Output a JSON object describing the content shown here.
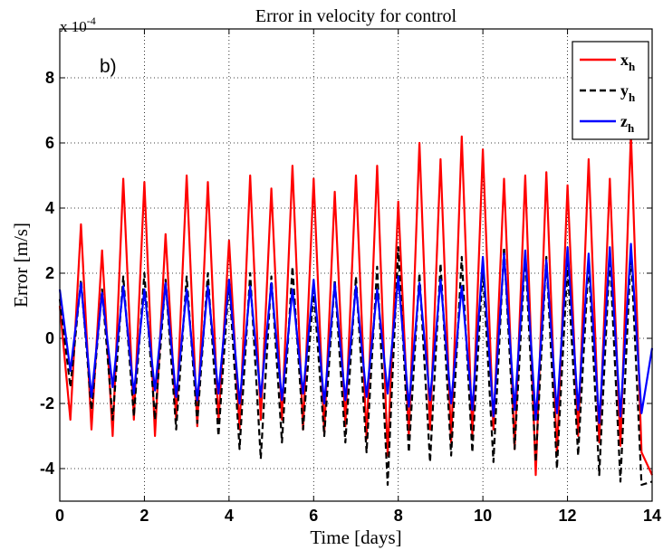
{
  "chart_data": {
    "type": "line",
    "title": "Error in velocity for control",
    "xlabel": "Time [days]",
    "ylabel": "Error [m/s]",
    "y_multiplier_label": "x 10",
    "y_multiplier_exponent": "-4",
    "panel_label": "b)",
    "xlim": [
      0,
      14
    ],
    "ylim": [
      -5,
      9.5
    ],
    "xticks": [
      "0",
      "2",
      "4",
      "6",
      "8",
      "10",
      "12",
      "14"
    ],
    "yticks": [
      "-4",
      "-2",
      "0",
      "2",
      "4",
      "6",
      "8"
    ],
    "grid": true,
    "legend_position": "top-right",
    "series": [
      {
        "name": "x_h",
        "label_base": "x",
        "label_sub": "h",
        "color": "#ff0000",
        "dash": "solid",
        "x": [
          0,
          0.25,
          0.5,
          0.75,
          1,
          1.25,
          1.5,
          1.75,
          2,
          2.25,
          2.5,
          2.75,
          3,
          3.25,
          3.5,
          3.75,
          4,
          4.25,
          4.5,
          4.75,
          5,
          5.25,
          5.5,
          5.75,
          6,
          6.25,
          6.5,
          6.75,
          7,
          7.25,
          7.5,
          7.75,
          8,
          8.25,
          8.5,
          8.75,
          9,
          9.25,
          9.5,
          9.75,
          10,
          10.25,
          10.5,
          10.75,
          11,
          11.25,
          11.5,
          11.75,
          12,
          12.25,
          12.5,
          12.75,
          13,
          13.25,
          13.5,
          13.75,
          14
        ],
        "values": [
          1.0,
          -2.5,
          3.5,
          -2.8,
          2.7,
          -3.0,
          4.9,
          -2.5,
          4.8,
          -3.0,
          3.2,
          -2.5,
          5.0,
          -2.7,
          4.8,
          -2.6,
          3.0,
          -2.8,
          5.0,
          -2.5,
          4.6,
          -2.5,
          5.3,
          -2.8,
          4.9,
          -2.9,
          4.5,
          -2.7,
          5.0,
          -3.1,
          5.3,
          -3.6,
          4.2,
          -3.0,
          6.0,
          -2.8,
          5.5,
          -3.2,
          6.2,
          -3.0,
          5.8,
          -2.8,
          4.9,
          -3.4,
          5.0,
          -4.2,
          5.1,
          -3.6,
          4.7,
          -3.0,
          5.5,
          -3.2,
          4.9,
          -3.3,
          6.3,
          -3.5,
          -4.2
        ]
      },
      {
        "name": "y_h",
        "label_base": "y",
        "label_sub": "h",
        "color": "#000000",
        "dash": "dashed",
        "x": [
          0,
          0.25,
          0.5,
          0.75,
          1,
          1.25,
          1.5,
          1.75,
          2,
          2.25,
          2.5,
          2.75,
          3,
          3.25,
          3.5,
          3.75,
          4,
          4.25,
          4.5,
          4.75,
          5,
          5.25,
          5.5,
          5.75,
          6,
          6.25,
          6.5,
          6.75,
          7,
          7.25,
          7.5,
          7.75,
          8,
          8.25,
          8.5,
          8.75,
          9,
          9.25,
          9.5,
          9.75,
          10,
          10.25,
          10.5,
          10.75,
          11,
          11.25,
          11.5,
          11.75,
          12,
          12.25,
          12.5,
          12.75,
          13,
          13.25,
          13.5,
          13.75,
          14
        ],
        "values": [
          1.2,
          -1.5,
          1.8,
          -2.2,
          1.5,
          -2.5,
          1.9,
          -2.4,
          2.0,
          -2.5,
          1.8,
          -2.8,
          1.9,
          -2.6,
          2.0,
          -3.0,
          1.8,
          -3.4,
          2.0,
          -3.7,
          1.9,
          -3.2,
          2.2,
          -2.8,
          1.5,
          -3.0,
          1.8,
          -3.2,
          1.9,
          -3.5,
          2.2,
          -4.5,
          2.8,
          -3.5,
          2.0,
          -3.8,
          2.3,
          -3.6,
          2.5,
          -3.5,
          2.2,
          -3.8,
          2.8,
          -3.4,
          2.6,
          -3.8,
          2.5,
          -4.0,
          2.3,
          -3.6,
          2.4,
          -4.2,
          2.6,
          -4.4,
          2.7,
          -4.5,
          -4.4
        ]
      },
      {
        "name": "z_h",
        "label_base": "z",
        "label_sub": "h",
        "color": "#0000ff",
        "dash": "solid",
        "x": [
          0,
          0.25,
          0.5,
          0.75,
          1,
          1.25,
          1.5,
          1.75,
          2,
          2.25,
          2.5,
          2.75,
          3,
          3.25,
          3.5,
          3.75,
          4,
          4.25,
          4.5,
          4.75,
          5,
          5.25,
          5.5,
          5.75,
          6,
          6.25,
          6.5,
          6.75,
          7,
          7.25,
          7.5,
          7.75,
          8,
          8.25,
          8.5,
          8.75,
          9,
          9.25,
          9.5,
          9.75,
          10,
          10.25,
          10.5,
          10.75,
          11,
          11.25,
          11.5,
          11.75,
          12,
          12.25,
          12.5,
          12.75,
          13,
          13.25,
          13.5,
          13.75,
          14
        ],
        "values": [
          1.5,
          -1.0,
          1.7,
          -1.8,
          1.4,
          -1.5,
          1.6,
          -1.7,
          1.5,
          -1.6,
          1.7,
          -1.8,
          1.5,
          -1.9,
          1.6,
          -1.7,
          1.8,
          -2.0,
          1.6,
          -1.8,
          1.7,
          -1.9,
          1.5,
          -1.7,
          1.8,
          -2.0,
          1.7,
          -1.9,
          1.6,
          -1.8,
          1.5,
          -1.7,
          1.9,
          -2.1,
          1.7,
          -1.9,
          1.8,
          -2.0,
          1.6,
          -2.2,
          2.5,
          -2.4,
          2.6,
          -2.2,
          2.7,
          -2.5,
          2.4,
          -2.3,
          2.8,
          -2.2,
          2.6,
          -2.6,
          2.8,
          -2.4,
          2.9,
          -2.3,
          -0.3
        ]
      }
    ]
  }
}
